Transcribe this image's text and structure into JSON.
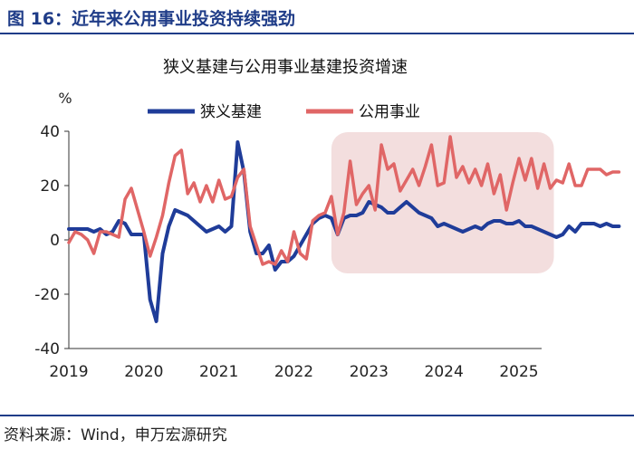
{
  "figure": {
    "title": "图 16：近年来公用事业投资持续强劲",
    "source": "资料来源：Wind，申万宏源研究"
  },
  "chart_data": {
    "type": "line",
    "title": "狭义基建与公用事业基建投资增速",
    "ylabel": "%",
    "ylim": [
      -40,
      40
    ],
    "yticks": [
      40,
      20,
      0,
      -20,
      -40
    ],
    "xticks": [
      "2019",
      "2020",
      "2021",
      "2022",
      "2023",
      "2024",
      "2025"
    ],
    "x_start": "2019-01",
    "x_end": "2025-06",
    "legend_position": "top",
    "highlight_period": [
      "2022-07",
      "2025-06"
    ],
    "colors": {
      "series1": "#1f3c99",
      "series2": "#e06666",
      "highlight": "#f3dede"
    },
    "series": [
      {
        "name": "狭义基建",
        "values": [
          4,
          4,
          4,
          4,
          3,
          4,
          2,
          3,
          7,
          6,
          2,
          2,
          2,
          -22,
          -30,
          -5,
          5,
          11,
          10,
          9,
          7,
          5,
          3,
          4,
          5,
          3,
          5,
          36,
          25,
          3,
          -5,
          -5,
          -2,
          -11,
          -8,
          -8,
          -6,
          -2,
          2,
          6,
          8,
          9,
          8,
          2,
          8,
          9,
          9,
          10,
          14,
          13,
          12,
          10,
          10,
          12,
          14,
          12,
          10,
          9,
          8,
          5,
          6,
          5,
          4,
          3,
          4,
          5,
          4,
          6,
          7,
          7,
          6,
          6,
          7,
          5,
          5,
          4,
          3,
          2,
          1,
          2,
          5,
          3,
          6,
          6,
          6,
          5,
          6,
          5,
          5
        ]
      },
      {
        "name": "公用事业",
        "values": [
          -1,
          3,
          2,
          0,
          -5,
          3,
          3,
          2,
          1,
          15,
          19,
          11,
          3,
          -6,
          1,
          9,
          21,
          31,
          33,
          17,
          21,
          14,
          20,
          14,
          22,
          15,
          16,
          23,
          26,
          5,
          -2,
          -9,
          -8,
          -9,
          -4,
          -8,
          3,
          -5,
          -7,
          7,
          9,
          10,
          16,
          2,
          10,
          29,
          13,
          17,
          20,
          11,
          35,
          26,
          28,
          18,
          22,
          26,
          20,
          27,
          35,
          20,
          21,
          38,
          23,
          27,
          21,
          26,
          20,
          28,
          17,
          24,
          11,
          21,
          30,
          22,
          30,
          19,
          28,
          19,
          22,
          21,
          28,
          20,
          20,
          26,
          26,
          26,
          24,
          25,
          25
        ]
      }
    ]
  }
}
